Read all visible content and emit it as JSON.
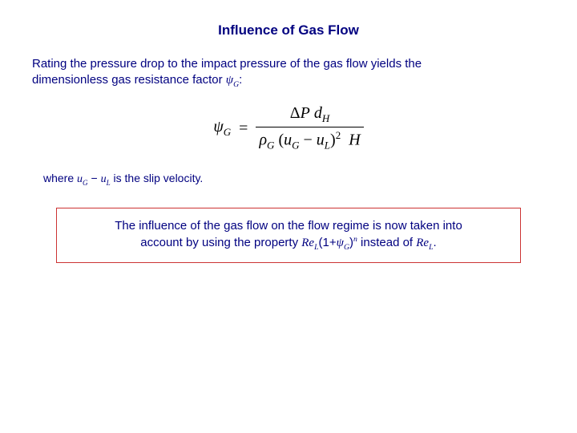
{
  "title": "Influence of Gas Flow",
  "intro": {
    "line1": "Rating the pressure drop to the impact pressure of the gas flow yields  the",
    "line2_pre": "dimensionless gas resistance factor ",
    "line2_sym": "ψ",
    "line2_sub": "G",
    "line2_post": ":"
  },
  "equation": {
    "lhs_sym": "ψ",
    "lhs_sub": "G",
    "eq": "=",
    "num_delta": "Δ",
    "num_P": "P",
    "num_d": "d",
    "num_d_sub": "H",
    "den_rho": "ρ",
    "den_rho_sub": "G",
    "den_uG": "u",
    "den_uG_sub": "G",
    "den_minus": "−",
    "den_uL": "u",
    "den_uL_sub": "L",
    "den_exp": "2",
    "den_H": "H"
  },
  "slip": {
    "pre": "where ",
    "uG": "u",
    "uG_sub": "G",
    "minus": " − ",
    "uL": "u",
    "uL_sub": "L",
    "post": " is the slip velocity."
  },
  "box": {
    "l1": "The influence of the gas flow on the flow regime is now taken into",
    "l2_pre": "account by using the property ",
    "reL_sym": "Re",
    "reL_sub": "L",
    "open": "(1+",
    "psi": "ψ",
    "psi_sub": "G",
    "close": ")",
    "exp_n": "n",
    "inst": " instead of ",
    "reL2_sym": "Re",
    "reL2_sub": "L",
    "dot": "."
  },
  "styling": {
    "text_color": "#000080",
    "equation_color": "#000000",
    "box_border_color": "#cc3333",
    "background": "#ffffff",
    "title_fontsize": 17,
    "body_fontsize": 15,
    "equation_fontsize": 20
  }
}
